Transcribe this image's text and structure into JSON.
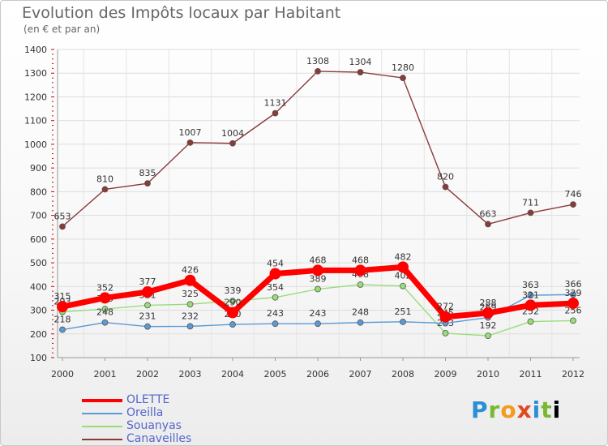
{
  "chart_data": {
    "type": "line",
    "title": "Evolution des Impôts locaux par Habitant",
    "subtitle": "(en € et par an)",
    "xlabel": "",
    "ylabel": "",
    "ylim": [
      100,
      1400
    ],
    "yticks": [
      100,
      200,
      300,
      400,
      500,
      600,
      700,
      800,
      900,
      1000,
      1100,
      1200,
      1300,
      1400
    ],
    "categories": [
      "2000",
      "2001",
      "2002",
      "2003",
      "2004",
      "2005",
      "2006",
      "2007",
      "2008",
      "2009",
      "2010",
      "2011",
      "2012"
    ],
    "series": [
      {
        "name": "Canaveilles",
        "color": "#8b3a3a",
        "values": [
          653,
          810,
          835,
          1007,
          1004,
          1131,
          1308,
          1304,
          1280,
          820,
          663,
          711,
          746
        ]
      },
      {
        "name": "Souanyas",
        "color": "#99dd77",
        "values": [
          293,
          305,
          321,
          325,
          339,
          354,
          389,
          408,
          402,
          203,
          192,
          252,
          256
        ]
      },
      {
        "name": "Oreilla",
        "color": "#5b9bd5",
        "values": [
          218,
          248,
          231,
          232,
          240,
          243,
          243,
          248,
          251,
          245,
          269,
          363,
          366
        ]
      },
      {
        "name": "OLETTE",
        "color": "#ff0000",
        "values": [
          315,
          352,
          377,
          426,
          290,
          454,
          468,
          468,
          482,
          272,
          288,
          321,
          329
        ]
      }
    ],
    "legend_order": [
      "OLETTE",
      "Oreilla",
      "Souanyas",
      "Canaveilles"
    ]
  },
  "logo": {
    "letters": [
      "P",
      "r",
      "o",
      "x",
      "i",
      "t",
      "i"
    ]
  }
}
